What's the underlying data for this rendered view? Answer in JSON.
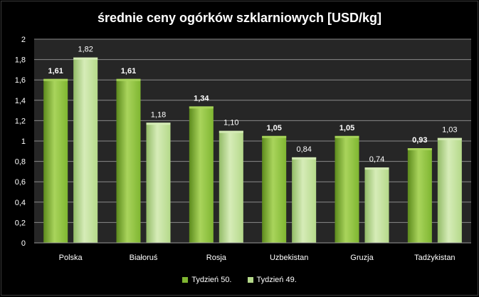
{
  "chart_data": {
    "type": "bar",
    "title": "średnie ceny ogórków szklarniowych [USD/kg]",
    "categories": [
      "Polska",
      "Białoruś",
      "Rosja",
      "Uzbekistan",
      "Gruzja",
      "Tadżykistan"
    ],
    "series": [
      {
        "name": "Tydzień 50.",
        "values": [
          1.61,
          1.61,
          1.34,
          1.05,
          1.05,
          0.93
        ],
        "labels": [
          "1,61",
          "1,61",
          "1,34",
          "1,05",
          "1,05",
          "0,93"
        ],
        "color": "#7fb631",
        "color_light": "#a9d45c",
        "color_dark": "#5c8a1c",
        "label_bold": true
      },
      {
        "name": "Tydzień 49.",
        "values": [
          1.82,
          1.18,
          1.1,
          0.84,
          0.74,
          1.03
        ],
        "labels": [
          "1,82",
          "1,18",
          "1,10",
          "0,84",
          "0,74",
          "1,03"
        ],
        "color": "#b5d98a",
        "color_light": "#d6ecb8",
        "color_dark": "#92bb66",
        "label_bold": false
      }
    ],
    "ylim": [
      0,
      2
    ],
    "yticks": [
      0,
      0.2,
      0.4,
      0.6,
      0.8,
      1,
      1.2,
      1.4,
      1.6,
      1.8,
      2
    ],
    "ytick_labels": [
      "0",
      "0,2",
      "0,4",
      "0,6",
      "0,8",
      "1",
      "1,2",
      "1,4",
      "1,6",
      "1,8",
      "2"
    ],
    "xlabel": "",
    "ylabel": "",
    "grid": true,
    "legend_position": "bottom"
  },
  "colors": {
    "background": "#000000",
    "plot_area": "#262626",
    "grid": "#8a8a8a",
    "text": "#ffffff"
  }
}
